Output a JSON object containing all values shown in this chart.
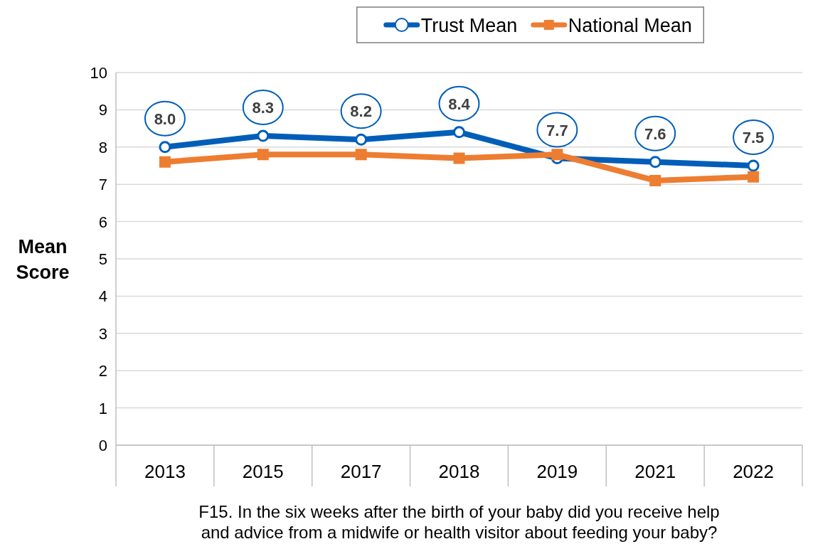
{
  "chart_data": {
    "type": "line",
    "categories": [
      "2013",
      "2015",
      "2017",
      "2018",
      "2019",
      "2021",
      "2022"
    ],
    "series": [
      {
        "name": "Trust Mean",
        "color": "#005eb8",
        "marker": "circle",
        "values": [
          8.0,
          8.3,
          8.2,
          8.4,
          7.7,
          7.6,
          7.5
        ],
        "value_labels": [
          "8.0",
          "8.3",
          "8.2",
          "8.4",
          "7.7",
          "7.6",
          "7.5"
        ]
      },
      {
        "name": "National Mean",
        "color": "#ed7d31",
        "marker": "square",
        "values": [
          7.6,
          7.8,
          7.8,
          7.7,
          7.8,
          7.1,
          7.2
        ]
      }
    ],
    "ylim": [
      0,
      10
    ],
    "yticks": [
      0,
      1,
      2,
      3,
      4,
      5,
      6,
      7,
      8,
      9,
      10
    ],
    "ylabel": "Mean Score",
    "xlabel": "F15. In the six weeks after the birth of your baby did you receive help and advice from a midwife or health visitor about feeding your baby?",
    "grid": "y",
    "legend": "top"
  }
}
